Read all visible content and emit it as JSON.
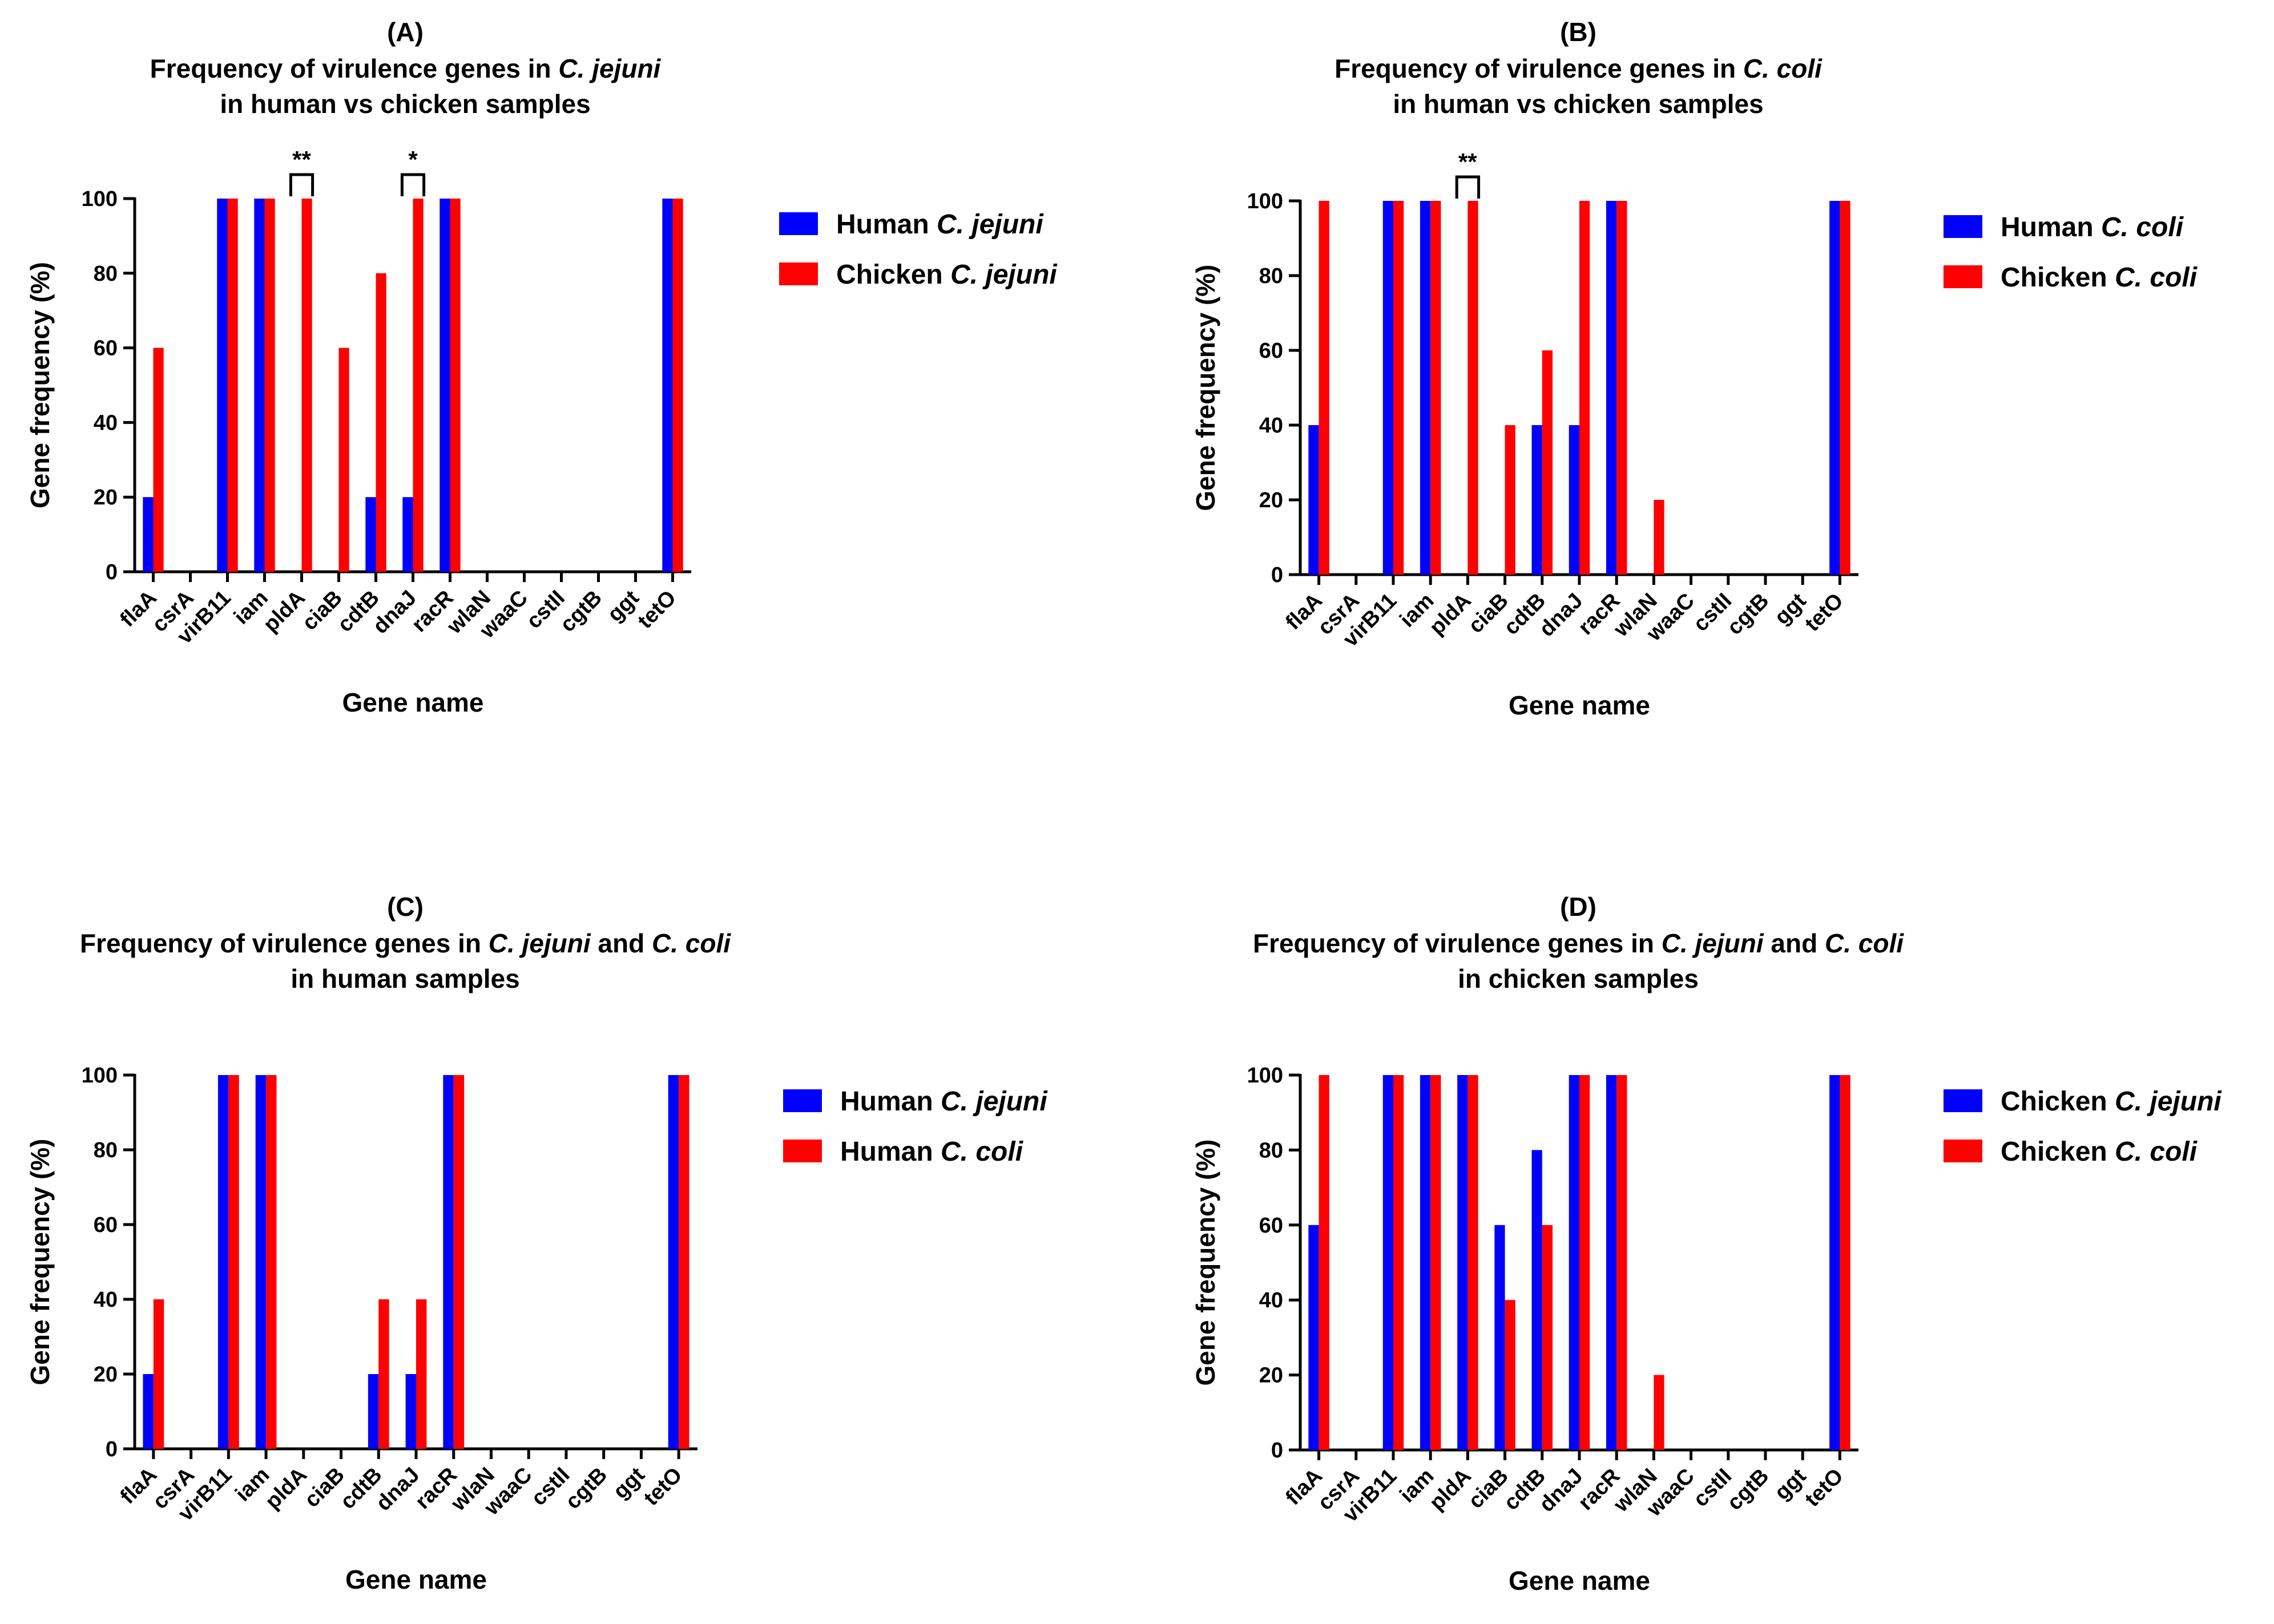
{
  "colors": {
    "blue": "#0000ff",
    "red": "#ff0000",
    "axis": "#000000"
  },
  "chart_data": [
    {
      "type": "bar",
      "panel": "(A)",
      "title_parts": [
        [
          {
            "text": "Frequency of virulence genes in ",
            "italic": false
          },
          {
            "text": "C. jejuni",
            "italic": true
          }
        ],
        [
          {
            "text": "in human vs chicken samples",
            "italic": false
          }
        ]
      ],
      "xlabel": "Gene name",
      "ylabel": "Gene frequency (%)",
      "ylim": [
        0,
        100
      ],
      "yticks": [
        0,
        20,
        40,
        60,
        80,
        100
      ],
      "categories": [
        "flaA",
        "csrA",
        "virB11",
        "iam",
        "pldA",
        "ciaB",
        "cdtB",
        "dnaJ",
        "racR",
        "wlaN",
        "waaC",
        "cstII",
        "cgtB",
        "ggt",
        "tetO"
      ],
      "series": [
        {
          "name_parts": [
            {
              "text": "Human ",
              "italic": false
            },
            {
              "text": "C. jejuni",
              "italic": true
            }
          ],
          "color": "#0000ff",
          "values": [
            20,
            0,
            100,
            100,
            0,
            0,
            20,
            20,
            100,
            0,
            0,
            0,
            0,
            0,
            100
          ]
        },
        {
          "name_parts": [
            {
              "text": "Chicken ",
              "italic": false
            },
            {
              "text": "C. jejuni",
              "italic": true
            }
          ],
          "color": "#ff0000",
          "values": [
            60,
            0,
            100,
            100,
            100,
            60,
            80,
            100,
            100,
            0,
            0,
            0,
            0,
            0,
            100
          ]
        }
      ],
      "annotations": [
        {
          "category": "pldA",
          "label": "**"
        },
        {
          "category": "dnaJ",
          "label": "*"
        }
      ],
      "legend": "right"
    },
    {
      "type": "bar",
      "panel": "(B)",
      "title_parts": [
        [
          {
            "text": "Frequency of virulence genes in ",
            "italic": false
          },
          {
            "text": "C. coli",
            "italic": true
          }
        ],
        [
          {
            "text": "in human vs chicken samples",
            "italic": false
          }
        ]
      ],
      "xlabel": "Gene name",
      "ylabel": "Gene frequency (%)",
      "ylim": [
        0,
        100
      ],
      "yticks": [
        0,
        20,
        40,
        60,
        80,
        100
      ],
      "categories": [
        "flaA",
        "csrA",
        "virB11",
        "iam",
        "pldA",
        "ciaB",
        "cdtB",
        "dnaJ",
        "racR",
        "wlaN",
        "waaC",
        "cstII",
        "cgtB",
        "ggt",
        "tetO"
      ],
      "series": [
        {
          "name_parts": [
            {
              "text": "Human ",
              "italic": false
            },
            {
              "text": "C. coli",
              "italic": true
            }
          ],
          "color": "#0000ff",
          "values": [
            40,
            0,
            100,
            100,
            0,
            0,
            40,
            40,
            100,
            0,
            0,
            0,
            0,
            0,
            100
          ]
        },
        {
          "name_parts": [
            {
              "text": "Chicken ",
              "italic": false
            },
            {
              "text": "C. coli",
              "italic": true
            }
          ],
          "color": "#ff0000",
          "values": [
            100,
            0,
            100,
            100,
            100,
            40,
            60,
            100,
            100,
            20,
            0,
            0,
            0,
            0,
            100
          ]
        }
      ],
      "annotations": [
        {
          "category": "pldA",
          "label": "**"
        }
      ],
      "legend": "right"
    },
    {
      "type": "bar",
      "panel": "(C)",
      "title_parts": [
        [
          {
            "text": "Frequency of virulence genes in ",
            "italic": false
          },
          {
            "text": "C. jejuni",
            "italic": true
          },
          {
            "text": " and ",
            "italic": false
          },
          {
            "text": "C. coli",
            "italic": true
          }
        ],
        [
          {
            "text": "in human samples",
            "italic": false
          }
        ]
      ],
      "xlabel": "Gene name",
      "ylabel": "Gene frequency (%)",
      "ylim": [
        0,
        100
      ],
      "yticks": [
        0,
        20,
        40,
        60,
        80,
        100
      ],
      "categories": [
        "flaA",
        "csrA",
        "virB11",
        "iam",
        "pldA",
        "ciaB",
        "cdtB",
        "dnaJ",
        "racR",
        "wlaN",
        "waaC",
        "cstII",
        "cgtB",
        "ggt",
        "tetO"
      ],
      "series": [
        {
          "name_parts": [
            {
              "text": "Human ",
              "italic": false
            },
            {
              "text": "C. jejuni",
              "italic": true
            }
          ],
          "color": "#0000ff",
          "values": [
            20,
            0,
            100,
            100,
            0,
            0,
            20,
            20,
            100,
            0,
            0,
            0,
            0,
            0,
            100
          ]
        },
        {
          "name_parts": [
            {
              "text": "Human ",
              "italic": false
            },
            {
              "text": "C. coli",
              "italic": true
            }
          ],
          "color": "#ff0000",
          "values": [
            40,
            0,
            100,
            100,
            0,
            0,
            40,
            40,
            100,
            0,
            0,
            0,
            0,
            0,
            100
          ]
        }
      ],
      "annotations": [],
      "legend": "right"
    },
    {
      "type": "bar",
      "panel": "(D)",
      "title_parts": [
        [
          {
            "text": "Frequency of virulence genes in ",
            "italic": false
          },
          {
            "text": "C. jejuni",
            "italic": true
          },
          {
            "text": " and ",
            "italic": false
          },
          {
            "text": "C. coli",
            "italic": true
          }
        ],
        [
          {
            "text": "in chicken samples",
            "italic": false
          }
        ]
      ],
      "xlabel": "Gene name",
      "ylabel": "Gene frequency (%)",
      "ylim": [
        0,
        100
      ],
      "yticks": [
        0,
        20,
        40,
        60,
        80,
        100
      ],
      "categories": [
        "flaA",
        "csrA",
        "virB11",
        "iam",
        "pldA",
        "ciaB",
        "cdtB",
        "dnaJ",
        "racR",
        "wlaN",
        "waaC",
        "cstII",
        "cgtB",
        "ggt",
        "tetO"
      ],
      "series": [
        {
          "name_parts": [
            {
              "text": "Chicken ",
              "italic": false
            },
            {
              "text": "C. jejuni",
              "italic": true
            }
          ],
          "color": "#0000ff",
          "values": [
            60,
            0,
            100,
            100,
            100,
            60,
            80,
            100,
            100,
            0,
            0,
            0,
            0,
            0,
            100
          ]
        },
        {
          "name_parts": [
            {
              "text": "Chicken ",
              "italic": false
            },
            {
              "text": "C. coli",
              "italic": true
            }
          ],
          "color": "#ff0000",
          "values": [
            100,
            0,
            100,
            100,
            100,
            40,
            60,
            100,
            100,
            20,
            0,
            0,
            0,
            0,
            100
          ]
        }
      ],
      "annotations": [],
      "legend": "right"
    }
  ]
}
